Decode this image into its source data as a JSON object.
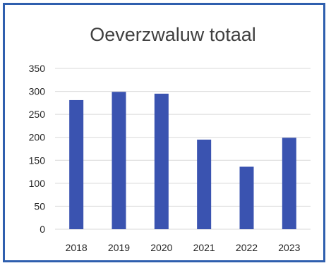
{
  "chart_data": {
    "type": "bar",
    "title": "Oeverzwaluw totaal",
    "categories": [
      "2018",
      "2019",
      "2020",
      "2021",
      "2022",
      "2023"
    ],
    "values": [
      281,
      299,
      295,
      195,
      136,
      199
    ],
    "ylim": [
      0,
      350
    ],
    "yticks": [
      0,
      50,
      100,
      150,
      200,
      250,
      300,
      350
    ],
    "grid": true,
    "bar_color": "#3a53b0",
    "border_color": "#2f5fae"
  }
}
